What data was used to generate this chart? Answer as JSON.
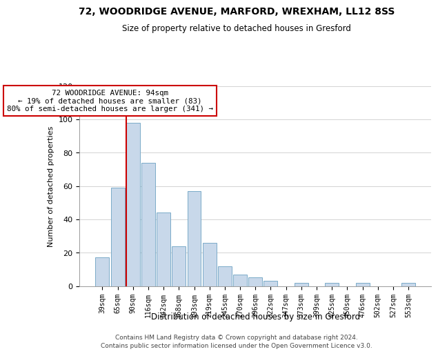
{
  "title1": "72, WOODRIDGE AVENUE, MARFORD, WREXHAM, LL12 8SS",
  "title2": "Size of property relative to detached houses in Gresford",
  "xlabel": "Distribution of detached houses by size in Gresford",
  "ylabel": "Number of detached properties",
  "bin_labels": [
    "39sqm",
    "65sqm",
    "90sqm",
    "116sqm",
    "142sqm",
    "168sqm",
    "193sqm",
    "219sqm",
    "245sqm",
    "270sqm",
    "296sqm",
    "322sqm",
    "347sqm",
    "373sqm",
    "399sqm",
    "425sqm",
    "450sqm",
    "476sqm",
    "502sqm",
    "527sqm",
    "553sqm"
  ],
  "bar_heights": [
    17,
    59,
    98,
    74,
    44,
    24,
    57,
    26,
    12,
    7,
    5,
    3,
    0,
    2,
    0,
    2,
    0,
    2,
    0,
    0,
    2
  ],
  "bar_color": "#c8d8ea",
  "bar_edge_color": "#7aaac8",
  "vline_index": 2,
  "vline_color": "#cc0000",
  "annotation_text": "72 WOODRIDGE AVENUE: 94sqm\n← 19% of detached houses are smaller (83)\n80% of semi-detached houses are larger (341) →",
  "annotation_box_color": "#ffffff",
  "annotation_box_edge": "#cc0000",
  "ylim": [
    0,
    120
  ],
  "yticks": [
    0,
    20,
    40,
    60,
    80,
    100,
    120
  ],
  "footer_line1": "Contains HM Land Registry data © Crown copyright and database right 2024.",
  "footer_line2": "Contains public sector information licensed under the Open Government Licence v3.0.",
  "background_color": "#ffffff",
  "grid_color": "#cccccc"
}
